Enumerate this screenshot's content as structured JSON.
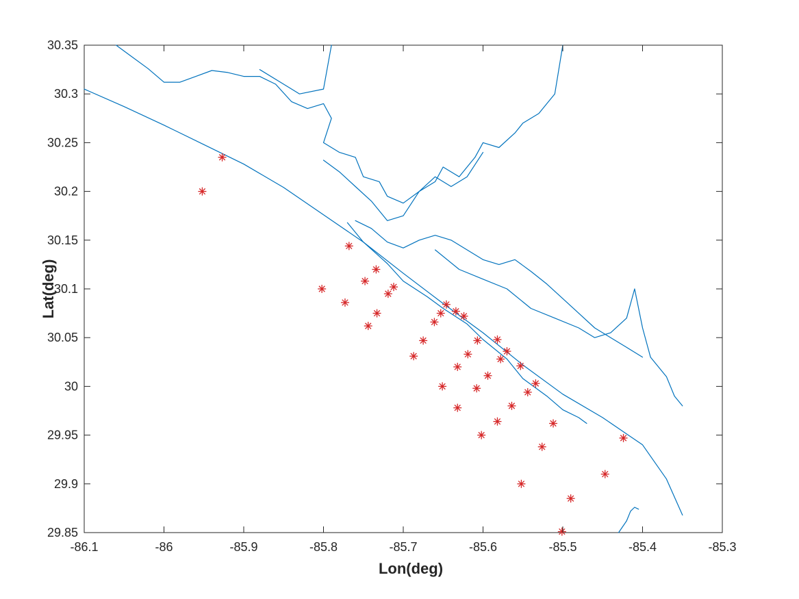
{
  "chart_data": {
    "type": "scatter",
    "title": "",
    "xlabel": "Lon(deg)",
    "ylabel": "Lat(deg)",
    "xlim": [
      -86.1,
      -85.3
    ],
    "ylim": [
      29.85,
      30.35
    ],
    "xticks": [
      -86.1,
      -86,
      -85.9,
      -85.8,
      -85.7,
      -85.6,
      -85.5,
      -85.4,
      -85.3
    ],
    "xtick_labels": [
      "-86.1",
      "-86",
      "-85.9",
      "-85.8",
      "-85.7",
      "-85.6",
      "-85.5",
      "-85.4",
      "-85.3"
    ],
    "yticks": [
      29.85,
      29.9,
      29.95,
      30,
      30.05,
      30.1,
      30.15,
      30.2,
      30.25,
      30.3,
      30.35
    ],
    "ytick_labels": [
      "29.85",
      "29.9",
      "29.95",
      "30",
      "30.05",
      "30.1",
      "30.15",
      "30.2",
      "30.25",
      "30.3",
      "30.35"
    ],
    "grid": false,
    "legend": "none",
    "coastline_color": "#0072BD",
    "marker_color": "#D62728",
    "coastline": [
      {
        "name": "gulf-shore",
        "lon": [
          -86.1,
          -86.05,
          -86.0,
          -85.95,
          -85.9,
          -85.85,
          -85.8,
          -85.75,
          -85.7,
          -85.65,
          -85.6,
          -85.55,
          -85.5,
          -85.45,
          -85.4,
          -85.37,
          -85.35
        ],
        "lat": [
          30.305,
          30.287,
          30.268,
          30.248,
          30.228,
          30.204,
          30.176,
          30.148,
          30.116,
          30.085,
          30.055,
          30.022,
          29.992,
          29.968,
          29.94,
          29.905,
          29.868
        ]
      },
      {
        "name": "bay-side-shore",
        "lon": [
          -85.77,
          -85.75,
          -85.72,
          -85.7,
          -85.67,
          -85.65,
          -85.62,
          -85.6,
          -85.57,
          -85.55,
          -85.52,
          -85.5,
          -85.48,
          -85.47
        ],
        "lat": [
          30.168,
          30.148,
          30.126,
          30.108,
          30.092,
          30.08,
          30.064,
          30.048,
          30.028,
          30.008,
          29.99,
          29.976,
          29.968,
          29.962
        ]
      },
      {
        "name": "northwest-shore",
        "lon": [
          -86.06,
          -86.04,
          -86.02,
          -86.0,
          -85.98,
          -85.96,
          -85.94,
          -85.92,
          -85.9,
          -85.88,
          -85.86
        ],
        "lat": [
          30.35,
          30.338,
          30.326,
          30.312,
          30.312,
          30.318,
          30.324,
          30.322,
          30.318,
          30.318,
          30.31
        ]
      },
      {
        "name": "north-bay",
        "lon": [
          -85.86,
          -85.84,
          -85.82,
          -85.8,
          -85.79,
          -85.8,
          -85.78,
          -85.76,
          -85.75,
          -85.73,
          -85.72,
          -85.7,
          -85.68,
          -85.66,
          -85.65,
          -85.63,
          -85.61,
          -85.6,
          -85.58,
          -85.56,
          -85.55,
          -85.53,
          -85.52,
          -85.51,
          -85.5
        ],
        "lat": [
          30.31,
          30.292,
          30.285,
          30.29,
          30.275,
          30.25,
          30.24,
          30.235,
          30.215,
          30.21,
          30.195,
          30.188,
          30.2,
          30.21,
          30.225,
          30.215,
          30.235,
          30.25,
          30.245,
          30.26,
          30.27,
          30.28,
          30.29,
          30.3,
          30.35
        ]
      },
      {
        "name": "west-arm",
        "lon": [
          -85.88,
          -85.85,
          -85.83,
          -85.8,
          -85.79
        ],
        "lat": [
          30.325,
          30.31,
          30.3,
          30.305,
          30.35
        ]
      },
      {
        "name": "middle-arm",
        "lon": [
          -85.8,
          -85.78,
          -85.76,
          -85.74,
          -85.72,
          -85.7,
          -85.68,
          -85.66,
          -85.64,
          -85.62,
          -85.6
        ],
        "lat": [
          30.232,
          30.22,
          30.205,
          30.19,
          30.17,
          30.175,
          30.2,
          30.215,
          30.205,
          30.215,
          30.24
        ]
      },
      {
        "name": "inner-bay",
        "lon": [
          -85.76,
          -85.74,
          -85.72,
          -85.7,
          -85.68,
          -85.66,
          -85.64,
          -85.62,
          -85.6,
          -85.58,
          -85.56,
          -85.54,
          -85.52,
          -85.5,
          -85.48,
          -85.46,
          -85.44,
          -85.42,
          -85.4
        ],
        "lat": [
          30.17,
          30.162,
          30.148,
          30.142,
          30.15,
          30.155,
          30.15,
          30.14,
          30.13,
          30.125,
          30.13,
          30.118,
          30.105,
          30.09,
          30.075,
          30.06,
          30.05,
          30.04,
          30.03
        ]
      },
      {
        "name": "east-arm",
        "lon": [
          -85.66,
          -85.63,
          -85.6,
          -85.57,
          -85.54,
          -85.51,
          -85.48,
          -85.46,
          -85.44,
          -85.42,
          -85.41,
          -85.4,
          -85.39,
          -85.37,
          -85.36,
          -85.35
        ],
        "lat": [
          30.14,
          30.12,
          30.11,
          30.1,
          30.08,
          30.07,
          30.06,
          30.05,
          30.055,
          30.07,
          30.1,
          30.06,
          30.03,
          30.01,
          29.99,
          29.98
        ]
      },
      {
        "name": "southeast-inlet",
        "lon": [
          -85.43,
          -85.42,
          -85.415,
          -85.41,
          -85.405
        ],
        "lat": [
          29.85,
          29.862,
          29.872,
          29.876,
          29.874
        ]
      }
    ],
    "series": [
      {
        "x": [
          -85.927,
          -85.952,
          -85.768,
          -85.802,
          -85.773,
          -85.748,
          -85.734,
          -85.719,
          -85.712,
          -85.733,
          -85.744,
          -85.653,
          -85.646,
          -85.634,
          -85.624,
          -85.661,
          -85.675,
          -85.687,
          -85.632,
          -85.619,
          -85.607,
          -85.582,
          -85.57,
          -85.578,
          -85.594,
          -85.608,
          -85.632,
          -85.651,
          -85.553,
          -85.534,
          -85.544,
          -85.564,
          -85.582,
          -85.602,
          -85.512,
          -85.526,
          -85.552,
          -85.49,
          -85.447,
          -85.424,
          -85.501
        ],
        "y": [
          30.235,
          30.2,
          30.144,
          30.1,
          30.086,
          30.108,
          30.12,
          30.095,
          30.102,
          30.075,
          30.062,
          30.075,
          30.084,
          30.077,
          30.072,
          30.066,
          30.047,
          30.031,
          30.02,
          30.033,
          30.047,
          30.048,
          30.036,
          30.028,
          30.011,
          29.998,
          29.978,
          30.0,
          30.021,
          30.003,
          29.994,
          29.98,
          29.964,
          29.95,
          29.962,
          29.938,
          29.9,
          29.885,
          29.91,
          29.947,
          29.851
        ]
      }
    ]
  }
}
